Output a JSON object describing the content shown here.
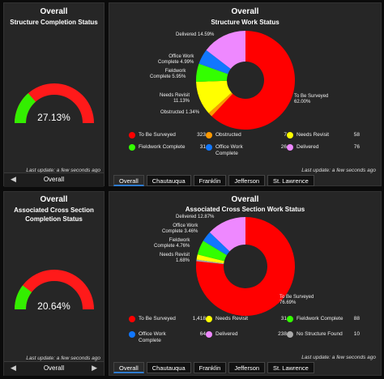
{
  "top": {
    "gauge_panel": {
      "title": "Overall",
      "subtitle": "Structure Completion Status",
      "value": "27.13%",
      "fraction": 0.2713,
      "last_update": "Last update: a few seconds ago",
      "nav_label": "Overall"
    },
    "chart_panel": {
      "title": "Overall",
      "subtitle": "Structure Work Status",
      "last_update": "Last update: a few seconds ago",
      "annotations": {
        "delivered": "Delivered 14.59%",
        "office": "Office Work\nComplete 4.99%",
        "fieldwork": "Fieldwork\nComplete 5.95%",
        "revisit": "Needs Revisit\n11.13%",
        "obstructed": "Obstructed 1.34%",
        "surveyed": "To Be Surveyed\n62.00%"
      },
      "legend": [
        {
          "label": "To Be Surveyed",
          "value": "323",
          "color": "#ff0000"
        },
        {
          "label": "Obstructed",
          "value": "7",
          "color": "#ff9900"
        },
        {
          "label": "Needs Revisit",
          "value": "58",
          "color": "#ffff00"
        },
        {
          "label": "Fieldwork Complete",
          "value": "31",
          "color": "#33ff00"
        },
        {
          "label": "Office Work Complete",
          "value": "26",
          "color": "#1177ff"
        },
        {
          "label": "Delivered",
          "value": "76",
          "color": "#ee88ff"
        }
      ],
      "tabs": [
        "Overall",
        "Chautauqua",
        "Franklin",
        "Jefferson",
        "St. Lawrence"
      ]
    }
  },
  "bottom": {
    "gauge_panel": {
      "title": "Overall",
      "subtitle": "Associated Cross Section Completion Status",
      "value": "20.64%",
      "fraction": 0.2064,
      "last_update": "Last update: a few seconds ago",
      "nav_label": "Overall"
    },
    "chart_panel": {
      "title": "Overall",
      "subtitle": "Associated Cross Section Work Status",
      "last_update": "Last update: a few seconds ago",
      "annotations": {
        "delivered": "Delivered 12.87%",
        "office": "Office Work\nComplete 3.46%",
        "fieldwork": "Fieldwork\nComplete 4.76%",
        "revisit": "Needs Revisit\n1.68%",
        "surveyed": "To Be Surveyed\n76.69%"
      },
      "legend": [
        {
          "label": "To Be Surveyed",
          "value": "1,418",
          "color": "#ff0000"
        },
        {
          "label": "Needs Revisit",
          "value": "31",
          "color": "#ffff00"
        },
        {
          "label": "Fieldwork Complete",
          "value": "88",
          "color": "#33ff00"
        },
        {
          "label": "Office Work Complete",
          "value": "64",
          "color": "#1177ff"
        },
        {
          "label": "Delivered",
          "value": "238",
          "color": "#ee88ff"
        },
        {
          "label": "No Structure Found",
          "value": "10",
          "color": "#aaaaaa"
        }
      ],
      "tabs": [
        "Overall",
        "Chautauqua",
        "Franklin",
        "Jefferson",
        "St. Lawrence"
      ]
    }
  },
  "chart_data": [
    {
      "type": "pie",
      "title": "Structure Work Status",
      "categories": [
        "To Be Surveyed",
        "Obstructed",
        "Needs Revisit",
        "Fieldwork Complete",
        "Office Work Complete",
        "Delivered"
      ],
      "values": [
        323,
        7,
        58,
        31,
        26,
        76
      ],
      "percentages": [
        62.0,
        1.34,
        11.13,
        5.95,
        4.99,
        14.59
      ]
    },
    {
      "type": "pie",
      "title": "Associated Cross Section Work Status",
      "categories": [
        "To Be Surveyed",
        "Needs Revisit",
        "Fieldwork Complete",
        "Office Work Complete",
        "Delivered",
        "No Structure Found"
      ],
      "values": [
        1418,
        31,
        88,
        64,
        238,
        10
      ],
      "percentages": [
        76.69,
        1.68,
        4.76,
        3.46,
        12.87,
        0.54
      ]
    }
  ]
}
